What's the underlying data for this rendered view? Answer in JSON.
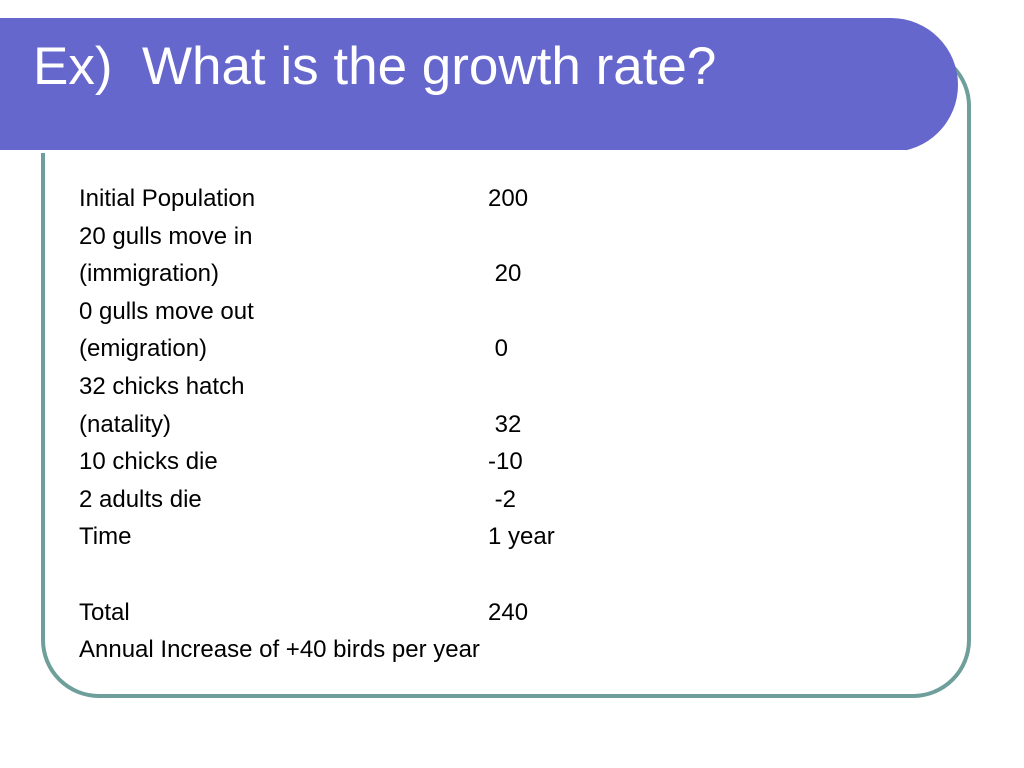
{
  "slide": {
    "title": "Ex)  What is the growth rate?",
    "rows": [
      {
        "label": "Initial Population",
        "value": "200"
      },
      {
        "label": "20 gulls move in",
        "value": ""
      },
      {
        "label": "(immigration)",
        "value": " 20"
      },
      {
        "label": "0 gulls move out",
        "value": ""
      },
      {
        "label": "(emigration)",
        "value": " 0"
      },
      {
        "label": "32 chicks hatch",
        "value": ""
      },
      {
        "label": "(natality)",
        "value": " 32"
      },
      {
        "label": "10 chicks die",
        "value": "-10"
      },
      {
        "label": "2 adults die",
        "value": " -2"
      },
      {
        "label": "Time",
        "value": "1 year"
      },
      {
        "label": "",
        "value": ""
      },
      {
        "label": "Total",
        "value": "240"
      },
      {
        "label": "Annual Increase of +40 birds per year",
        "value": ""
      }
    ]
  },
  "colors": {
    "title_bar": "#6667cc",
    "frame_border": "#6f9f9a",
    "title_text": "#ffffff",
    "body_text": "#000000"
  }
}
